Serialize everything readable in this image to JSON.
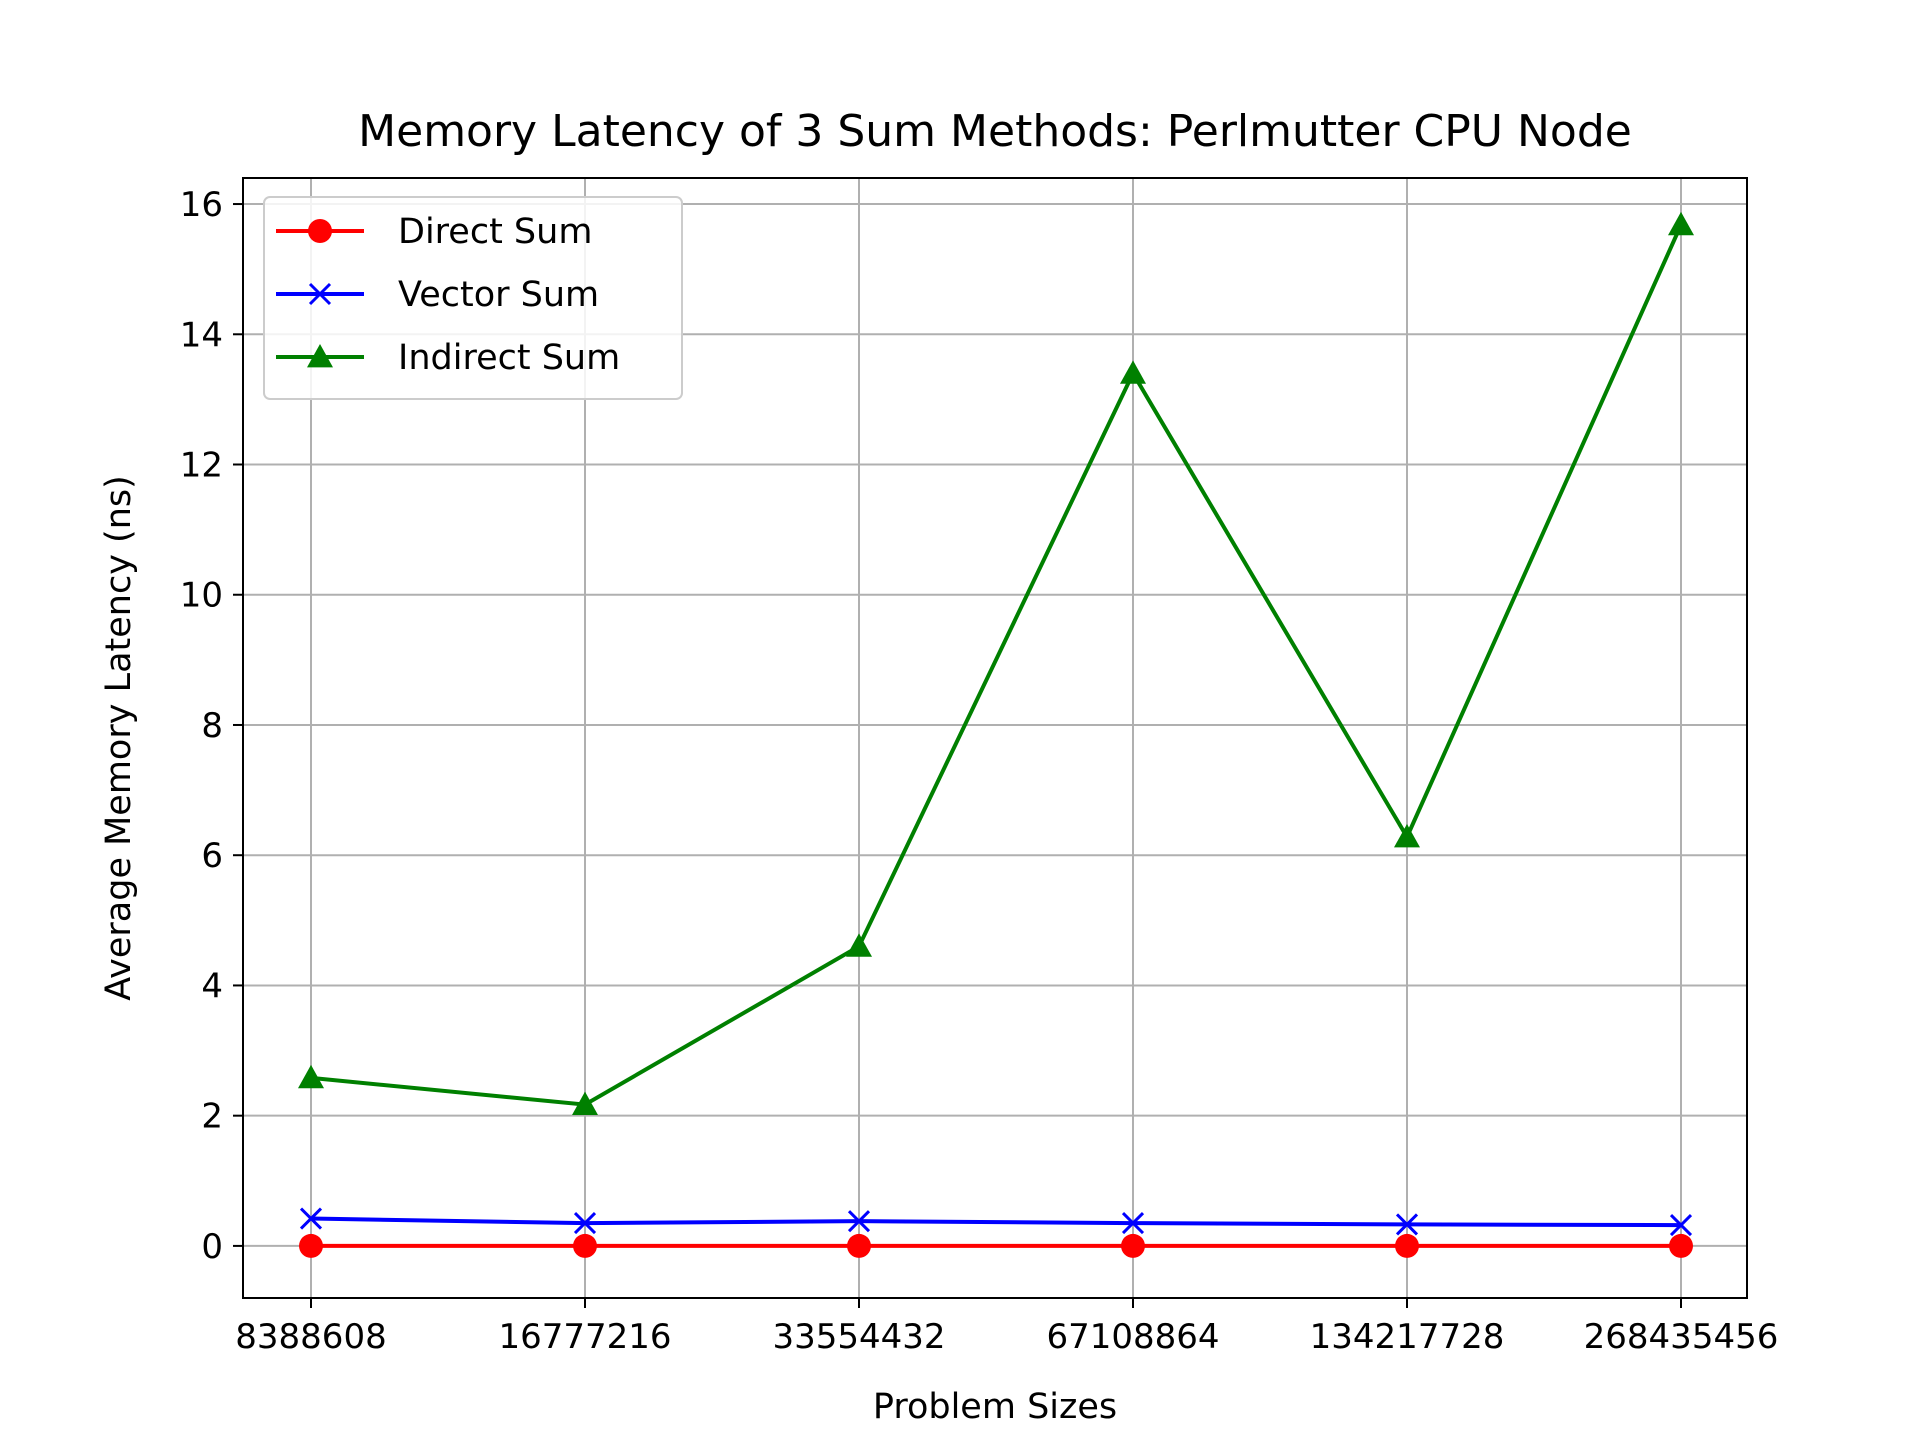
{
  "chart_data": {
    "type": "line",
    "title": "Memory Latency of 3 Sum Methods: Perlmutter CPU Node",
    "xlabel": "Problem Sizes",
    "ylabel": "Average Memory Latency (ns)",
    "categories": [
      "8388608",
      "16777216",
      "33554432",
      "67108864",
      "134217728",
      "268435456"
    ],
    "ylim": [
      -0.8,
      16.4
    ],
    "yticks": [
      "0",
      "2",
      "4",
      "6",
      "8",
      "10",
      "12",
      "14",
      "16"
    ],
    "grid": true,
    "legend": "top-left",
    "series": [
      {
        "name": "Direct Sum",
        "color": "#ff0000",
        "marker": "circle",
        "values": [
          0.0,
          0.0,
          0.0,
          0.0,
          0.0,
          0.0
        ]
      },
      {
        "name": "Vector Sum",
        "color": "#0000ff",
        "marker": "x",
        "values": [
          0.42,
          0.35,
          0.38,
          0.35,
          0.33,
          0.32
        ]
      },
      {
        "name": "Indirect Sum",
        "color": "#008000",
        "marker": "triangle",
        "values": [
          2.58,
          2.17,
          4.6,
          13.4,
          6.28,
          15.68
        ]
      }
    ]
  }
}
